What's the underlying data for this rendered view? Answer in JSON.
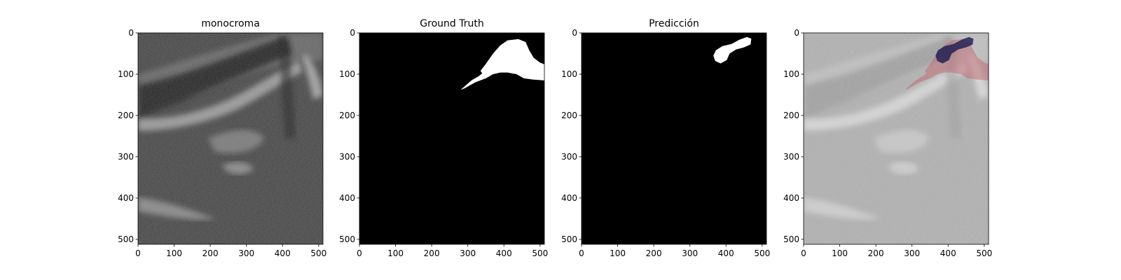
{
  "chart_data": [
    {
      "type": "image",
      "title": "monocroma",
      "xlim": [
        0,
        512
      ],
      "ylim": [
        512,
        0
      ],
      "xticks": [
        0,
        100,
        200,
        300,
        400,
        500
      ],
      "yticks": [
        0,
        100,
        200,
        300,
        400,
        500
      ]
    },
    {
      "type": "image",
      "title": "Ground Truth",
      "xlim": [
        0,
        512
      ],
      "ylim": [
        512,
        0
      ],
      "xticks": [
        0,
        100,
        200,
        300,
        400,
        500
      ],
      "yticks": [
        0,
        100,
        200,
        300,
        400,
        500
      ]
    },
    {
      "type": "image",
      "title": "Predicción",
      "xlim": [
        0,
        512
      ],
      "ylim": [
        512,
        0
      ],
      "xticks": [
        0,
        100,
        200,
        300,
        400,
        500
      ],
      "yticks": [
        0,
        100,
        200,
        300,
        400,
        500
      ]
    },
    {
      "type": "image",
      "xlim": [
        0,
        512
      ],
      "ylim": [
        512,
        0
      ],
      "xticks": [
        0,
        100,
        200,
        300,
        400,
        500
      ],
      "yticks": [
        0,
        100,
        200,
        300,
        400,
        500
      ]
    }
  ]
}
